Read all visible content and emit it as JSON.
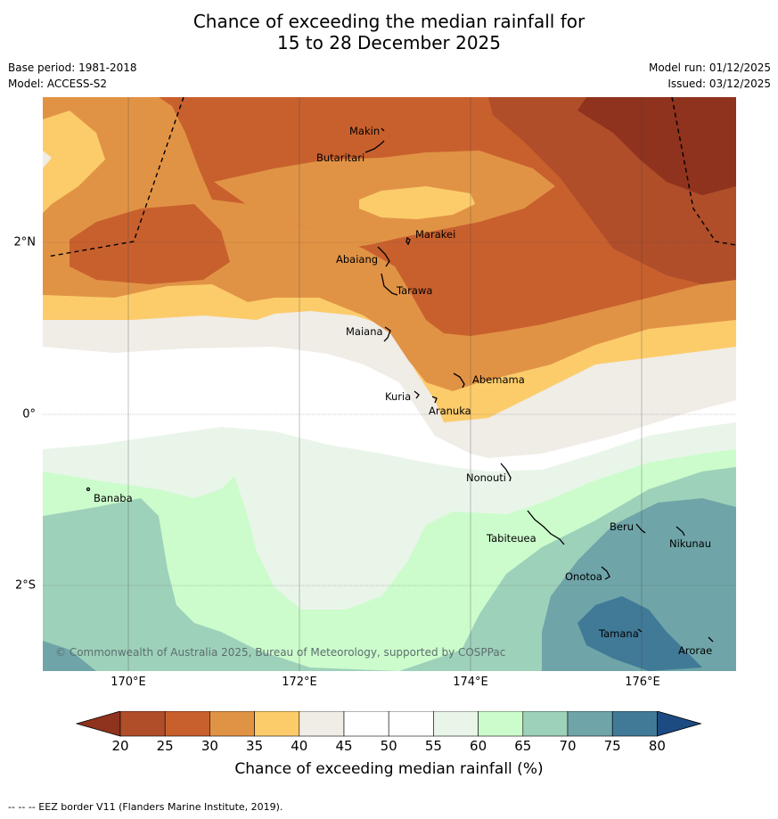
{
  "title_line1": "Chance of exceeding the median rainfall for",
  "title_line2": "15 to 28 December 2025",
  "base_period": "Base period: 1981-2018",
  "model": "Model: ACCESS-S2",
  "model_run": "Model run: 01/12/2025",
  "issued": "Issued: 03/12/2025",
  "copyright": "© Commonwealth of Australia 2025, Bureau of Meteorology, supported by COSPPac",
  "lon_labels": [
    "170°E",
    "172°E",
    "174°E",
    "176°E"
  ],
  "lat_labels": [
    "2°N",
    "0°",
    "2°S"
  ],
  "places": [
    "Makin",
    "Butaritari",
    "Marakei",
    "Abaiang",
    "Tarawa",
    "Maiana",
    "Abemama",
    "Kuria",
    "Aranuka",
    "Nonouti",
    "Banaba",
    "Tabiteuea",
    "Beru",
    "Nikunau",
    "Onotoa",
    "Tamana",
    "Arorae"
  ],
  "colorbar": {
    "ticks": [
      "20",
      "25",
      "30",
      "35",
      "40",
      "45",
      "50",
      "55",
      "60",
      "65",
      "70",
      "75",
      "80"
    ],
    "title": "Chance of exceeding median rainfall (%)",
    "colors": [
      "#b04e2a",
      "#c8602e",
      "#e19345",
      "#fccc6b",
      "#f0ece6",
      "#ffffff",
      "#ffffff",
      "#e9f5e9",
      "#ccfccc",
      "#9ed1ba",
      "#6fa5a8",
      "#417a97"
    ],
    "under_color": "#8f321e",
    "over_color": "#1c4b82"
  },
  "footnote": "--  --  -- EEZ border V11 (Flanders Marine Institute, 2019)."
}
